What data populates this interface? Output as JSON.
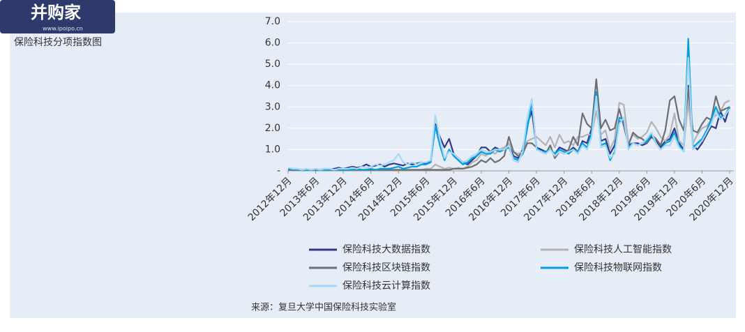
{
  "watermark": {
    "name": "并购家",
    "url": "www.ipoipo.cn"
  },
  "chart_data": {
    "type": "line",
    "title": "保险科技分项指数图",
    "source": "来源：复旦大学中国保险科技实验室",
    "categories": [
      "2012年12月",
      null,
      null,
      null,
      null,
      null,
      "2013年6月",
      null,
      null,
      null,
      null,
      null,
      "2013年12月",
      null,
      null,
      null,
      null,
      null,
      "2014年6月",
      null,
      null,
      null,
      null,
      null,
      "2014年12月",
      null,
      null,
      null,
      null,
      null,
      "2015年6月",
      null,
      null,
      null,
      null,
      null,
      "2015年12月",
      null,
      null,
      null,
      null,
      null,
      "2016年6月",
      null,
      null,
      null,
      null,
      null,
      "2016年12月",
      null,
      null,
      null,
      null,
      null,
      "2017年6月",
      null,
      null,
      null,
      null,
      null,
      "2017年12月",
      null,
      null,
      null,
      null,
      null,
      "2018年6月",
      null,
      null,
      null,
      null,
      null,
      "2018年12月",
      null,
      null,
      null,
      null,
      null,
      "2019年6月",
      null,
      null,
      null,
      null,
      null,
      "2019年12月",
      null,
      null,
      null,
      null,
      null,
      "2020年6月",
      null,
      null,
      null,
      null,
      null,
      "2020年12月"
    ],
    "ylim": [
      0,
      7
    ],
    "yticks": [
      {
        "value": 0,
        "label": "-"
      },
      {
        "value": 1,
        "label": "1.0"
      },
      {
        "value": 2,
        "label": "2.0"
      },
      {
        "value": 3,
        "label": "3.0"
      },
      {
        "value": 4,
        "label": "4.0"
      },
      {
        "value": 5,
        "label": "5.0"
      },
      {
        "value": 6,
        "label": "6.0"
      },
      {
        "value": 7,
        "label": "7.0"
      }
    ],
    "grid": true,
    "series": [
      {
        "name": "保险科技大数据指数",
        "color": "#2e3a87",
        "values": [
          0.1,
          0.1,
          0.05,
          0.05,
          0.05,
          0.05,
          0.05,
          0.05,
          0.1,
          0.05,
          0.1,
          0.15,
          0.1,
          0.15,
          0.2,
          0.15,
          0.2,
          0.3,
          0.2,
          0.25,
          0.3,
          0.2,
          0.3,
          0.35,
          0.3,
          0.25,
          0.35,
          0.3,
          0.35,
          0.4,
          0.35,
          0.5,
          2.2,
          1.6,
          1.1,
          1.5,
          0.8,
          0.6,
          0.4,
          0.3,
          0.5,
          0.7,
          1.1,
          1.1,
          0.9,
          1.1,
          1.0,
          1.1,
          1.2,
          0.7,
          0.6,
          1.0,
          2.2,
          2.8,
          1.1,
          1.0,
          0.9,
          1.0,
          0.8,
          1.1,
          1.0,
          0.9,
          1.1,
          0.9,
          1.4,
          1.3,
          2.0,
          3.5,
          1.4,
          1.5,
          0.8,
          1.2,
          2.3,
          2.4,
          1.2,
          1.3,
          1.3,
          1.2,
          1.3,
          1.6,
          1.4,
          1.1,
          1.4,
          1.5,
          2.0,
          1.3,
          1.0,
          4.0,
          1.2,
          1.0,
          1.3,
          1.7,
          2.1,
          2.0,
          2.8,
          2.3,
          3.0
        ]
      },
      {
        "name": "保险科技人工智能指数",
        "color": "#b3b3b3",
        "values": [
          0.05,
          0.05,
          0.05,
          0.05,
          0.05,
          0.05,
          0.05,
          0.05,
          0.05,
          0.05,
          0.05,
          0.05,
          0.05,
          0.05,
          0.05,
          0.05,
          0.05,
          0.05,
          0.05,
          0.05,
          0.05,
          0.05,
          0.05,
          0.05,
          0.05,
          0.05,
          0.05,
          0.05,
          0.05,
          0.05,
          0.1,
          0.1,
          0.3,
          0.2,
          0.1,
          0.15,
          0.1,
          0.15,
          0.1,
          0.2,
          0.4,
          0.5,
          0.8,
          0.7,
          0.9,
          0.8,
          1.0,
          1.1,
          1.3,
          0.9,
          0.8,
          0.9,
          1.4,
          1.5,
          1.6,
          1.4,
          1.2,
          1.6,
          1.1,
          1.7,
          1.3,
          1.4,
          1.2,
          1.6,
          1.6,
          1.7,
          1.7,
          2.8,
          1.7,
          1.9,
          1.0,
          1.5,
          3.2,
          3.1,
          1.3,
          1.7,
          1.5,
          1.6,
          1.8,
          2.3,
          2.0,
          1.6,
          1.4,
          1.7,
          2.7,
          1.4,
          1.2,
          3.2,
          1.3,
          1.7,
          2.0,
          2.1,
          2.4,
          2.6,
          2.8,
          3.2,
          3.3
        ]
      },
      {
        "name": "保险科技区块链指数",
        "color": "#6d6e71",
        "values": [
          0.05,
          0.05,
          0.05,
          0.05,
          0.05,
          0.05,
          0.05,
          0.05,
          0.05,
          0.05,
          0.05,
          0.05,
          0.05,
          0.05,
          0.05,
          0.05,
          0.05,
          0.05,
          0.05,
          0.05,
          0.05,
          0.05,
          0.05,
          0.05,
          0.05,
          0.05,
          0.05,
          0.05,
          0.05,
          0.05,
          0.05,
          0.05,
          0.05,
          0.05,
          0.05,
          0.05,
          0.1,
          0.1,
          0.1,
          0.15,
          0.2,
          0.3,
          0.5,
          0.4,
          0.6,
          0.4,
          0.5,
          0.7,
          1.6,
          0.9,
          0.7,
          0.8,
          1.3,
          1.3,
          1.1,
          0.9,
          0.8,
          1.2,
          0.6,
          0.9,
          0.8,
          1.0,
          1.6,
          1.2,
          2.7,
          2.2,
          2.0,
          4.3,
          2.0,
          2.4,
          1.9,
          2.0,
          2.9,
          2.1,
          1.2,
          1.8,
          1.6,
          1.5,
          1.3,
          1.7,
          1.5,
          1.2,
          1.9,
          3.3,
          3.5,
          2.4,
          1.9,
          3.9,
          1.9,
          1.8,
          2.2,
          2.5,
          2.4,
          3.5,
          2.8,
          2.9,
          3.0
        ]
      },
      {
        "name": "保险科技物联网指数",
        "color": "#00a0e0",
        "values": [
          0.1,
          0.08,
          0.05,
          0.05,
          0.05,
          0.05,
          0.05,
          0.05,
          0.05,
          0.05,
          0.05,
          0.05,
          0.05,
          0.05,
          0.05,
          0.1,
          0.05,
          0.05,
          0.1,
          0.05,
          0.1,
          0.1,
          0.1,
          0.15,
          0.2,
          0.1,
          0.15,
          0.2,
          0.2,
          0.3,
          0.3,
          0.4,
          2.1,
          1.2,
          0.5,
          1.0,
          0.7,
          0.5,
          0.3,
          0.4,
          0.6,
          0.7,
          0.9,
          0.8,
          0.8,
          1.0,
          0.9,
          1.0,
          1.1,
          0.6,
          0.5,
          0.8,
          2.0,
          3.2,
          1.1,
          0.9,
          0.9,
          1.0,
          0.8,
          1.0,
          0.9,
          0.8,
          1.0,
          0.9,
          1.3,
          1.1,
          1.8,
          3.7,
          1.2,
          1.3,
          0.5,
          0.9,
          2.5,
          2.4,
          1.1,
          1.3,
          1.2,
          1.3,
          1.4,
          1.7,
          1.3,
          1.0,
          1.3,
          1.4,
          1.8,
          1.2,
          0.9,
          6.2,
          1.1,
          1.3,
          1.5,
          1.9,
          2.4,
          3.0,
          2.5,
          2.6,
          3.0
        ]
      },
      {
        "name": "保险科技云计算指数",
        "color": "#a8d8f5",
        "values": [
          0.15,
          0.1,
          0.1,
          0.05,
          0.1,
          0.05,
          0.1,
          0.05,
          0.1,
          0.1,
          0.05,
          0.1,
          0.1,
          0.1,
          0.15,
          0.1,
          0.2,
          0.15,
          0.2,
          0.3,
          0.25,
          0.3,
          0.4,
          0.5,
          0.8,
          0.4,
          0.3,
          0.4,
          0.3,
          0.4,
          0.4,
          0.5,
          2.6,
          1.5,
          0.6,
          0.9,
          0.8,
          0.6,
          0.4,
          0.5,
          0.7,
          0.8,
          1.0,
          0.9,
          0.9,
          1.0,
          1.0,
          1.0,
          1.2,
          0.5,
          0.4,
          0.9,
          2.5,
          3.4,
          1.0,
          0.9,
          0.8,
          1.0,
          0.7,
          0.9,
          0.8,
          0.9,
          1.0,
          0.8,
          1.2,
          1.0,
          1.6,
          3.5,
          1.1,
          1.2,
          0.6,
          0.8,
          2.2,
          2.5,
          1.0,
          1.3,
          1.2,
          1.3,
          1.5,
          1.8,
          1.3,
          1.0,
          1.2,
          1.2,
          1.6,
          1.1,
          0.9,
          5.3,
          1.0,
          1.2,
          1.4,
          1.8,
          2.2,
          2.8,
          2.4,
          2.6,
          2.9
        ]
      }
    ]
  }
}
